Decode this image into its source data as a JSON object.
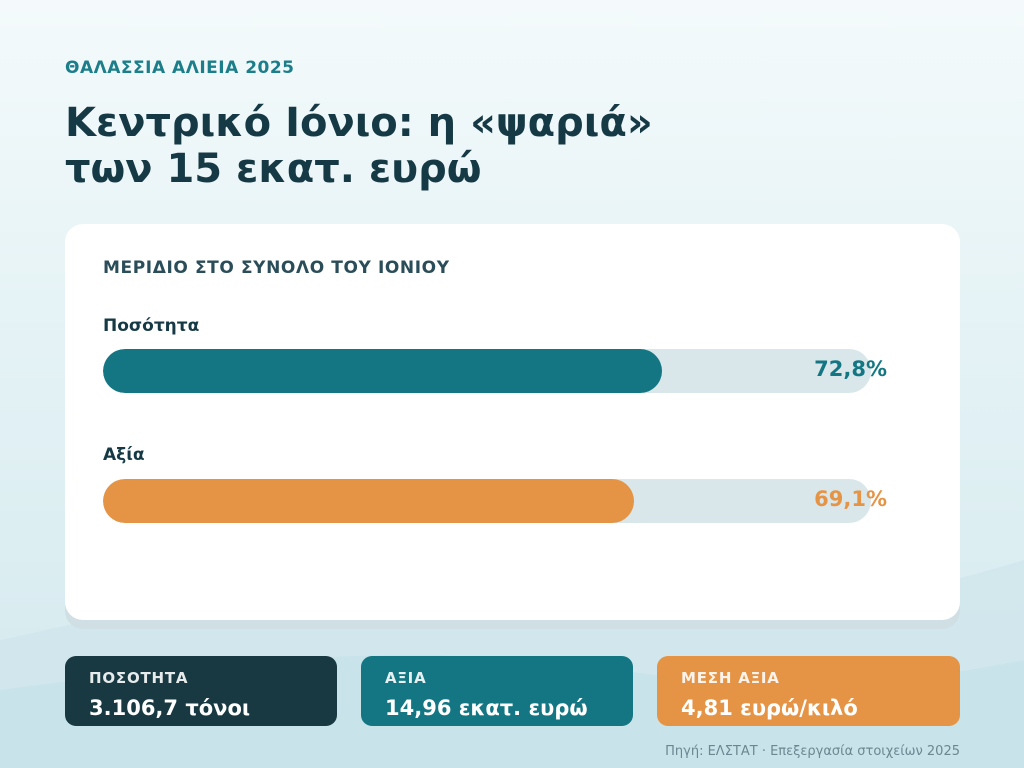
{
  "kicker": "ΘΑΛΑΣΣΙΑ ΑΛΙΕΙΑ 2025",
  "headline": {
    "line1": "Κεντρικό Ιόνιο: η «ψαριά»",
    "line2": "των 15 εκατ. ευρώ"
  },
  "chart_data": {
    "type": "bar",
    "orientation": "horizontal",
    "title": "ΜΕΡΙΔΙΟ ΣΤΟ ΣΥΝΟΛΟ ΤΟΥ ΙΟΝΙΟΥ",
    "categories": [
      "Ποσότητα",
      "Αξία"
    ],
    "values": [
      72.8,
      69.1
    ],
    "value_labels": [
      "72,8%",
      "69,1%"
    ],
    "xlim": [
      0,
      100
    ],
    "colors": [
      "#137682",
      "#e59446"
    ],
    "grid": false,
    "legend": "none"
  },
  "stats": [
    {
      "label": "ΠΟΣΟΤΗΤΑ",
      "value": "3.106,7 τόνοι",
      "color": "#183941"
    },
    {
      "label": "ΑΞΙΑ",
      "value": "14,96 εκατ. ευρώ",
      "color": "#137682"
    },
    {
      "label": "ΜΕΣΗ ΑΞΙΑ",
      "value": "4,81 ευρώ/κιλό",
      "color": "#e59446"
    }
  ],
  "source": "Πηγή: ΕΛΣΤΑΤ · Επεξεργασία στοιχείων 2025"
}
